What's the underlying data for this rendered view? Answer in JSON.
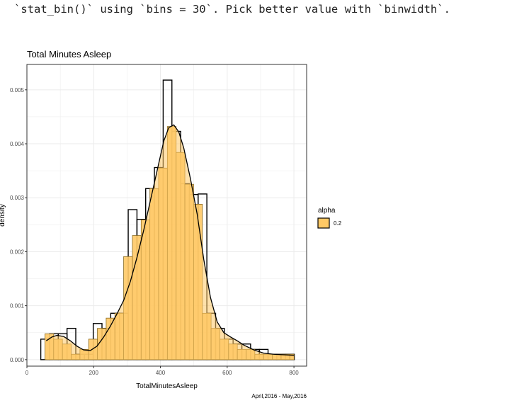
{
  "console": {
    "message": "`stat_bin()` using `bins = 30`. Pick better value with `binwidth`."
  },
  "colors": {
    "fill": "#FFC966",
    "stroke": "#000000",
    "grid": "#EBEBEB",
    "panel_border": "#333333",
    "text": "#4D4D4D"
  },
  "chart_data": {
    "type": "bar",
    "title": "Total Minutes Asleep",
    "xlabel": "TotalMinutesAsleep",
    "ylabel": "density",
    "caption": "April,2016 - May,2016",
    "xlim": [
      0,
      838
    ],
    "ylim": [
      -0.00012,
      0.00547
    ],
    "x_ticks": [
      0,
      200,
      400,
      600,
      800
    ],
    "y_ticks": [
      0.0,
      0.001,
      0.002,
      0.003,
      0.004,
      0.005
    ],
    "y_tick_labels": [
      "0.000",
      "0.001",
      "0.002",
      "0.003",
      "0.004",
      "0.005"
    ],
    "grid": true,
    "legend": {
      "title": "alpha",
      "entries": [
        "0.2"
      ],
      "placement": "right"
    },
    "histogram_outline": {
      "bin_edges": [
        41.6,
        67.8,
        94.0,
        120.2,
        146.4,
        172.6,
        198.7,
        224.9,
        251.1,
        277.3,
        303.5,
        329.7,
        355.8,
        382.0,
        408.2,
        434.4,
        460.6,
        486.8,
        513.0,
        539.1,
        565.3,
        591.5,
        617.7,
        643.9,
        670.1,
        696.2,
        722.4,
        748.6,
        774.8,
        801.0
      ],
      "densities": [
        0.00038,
        0.00048,
        0.00048,
        0.00058,
        0.0001,
        0.0001,
        0.00067,
        0.00058,
        0.00086,
        0.00086,
        0.00278,
        0.0026,
        0.00317,
        0.00356,
        0.00518,
        0.00423,
        0.00326,
        0.00306,
        0.00307,
        0.00086,
        0.00058,
        0.00038,
        0.00029,
        0.00029,
        0.00019,
        0.00019,
        0.0001,
        0.0001,
        0.0001
      ]
    },
    "histogram_filled": {
      "bin_edges": [
        54.0,
        80.2,
        106.4,
        132.6,
        158.8,
        185.0,
        211.2,
        237.4,
        263.6,
        289.8,
        316.0,
        342.2,
        368.4,
        394.6,
        420.8,
        447.0,
        473.2,
        499.4,
        525.6,
        551.8,
        578.0,
        604.2,
        630.4,
        656.6,
        682.8,
        709.0,
        735.2,
        761.4,
        787.6,
        800.0
      ],
      "densities": [
        0.00048,
        0.00038,
        0.00029,
        0.0001,
        0.00019,
        0.00038,
        0.00058,
        0.00077,
        0.00086,
        0.00191,
        0.0023,
        0.00259,
        0.00317,
        0.00355,
        0.00432,
        0.00384,
        0.00325,
        0.00288,
        0.00086,
        0.00058,
        0.00038,
        0.00029,
        0.00019,
        0.00019,
        0.0001,
        0.0001,
        0.0001,
        0.0001,
        0.0001
      ]
    },
    "density_curve": {
      "x": [
        58,
        75,
        90,
        110,
        130,
        150,
        170,
        190,
        210,
        230,
        250,
        270,
        290,
        310,
        330,
        350,
        370,
        390,
        410,
        425,
        440,
        455,
        470,
        490,
        510,
        530,
        550,
        570,
        590,
        610,
        630,
        650,
        680,
        710,
        740,
        770,
        800
      ],
      "y": [
        0.00035,
        0.00042,
        0.00045,
        0.00043,
        0.00035,
        0.00025,
        0.00018,
        0.00017,
        0.00025,
        0.00042,
        0.00062,
        0.00085,
        0.0011,
        0.00145,
        0.0019,
        0.0024,
        0.00295,
        0.0035,
        0.00405,
        0.0043,
        0.00435,
        0.00422,
        0.00392,
        0.00335,
        0.0027,
        0.00185,
        0.00115,
        0.0007,
        0.0005,
        0.00042,
        0.00035,
        0.00027,
        0.00018,
        0.00012,
        0.0001,
        9e-05,
        8e-05
      ]
    }
  }
}
